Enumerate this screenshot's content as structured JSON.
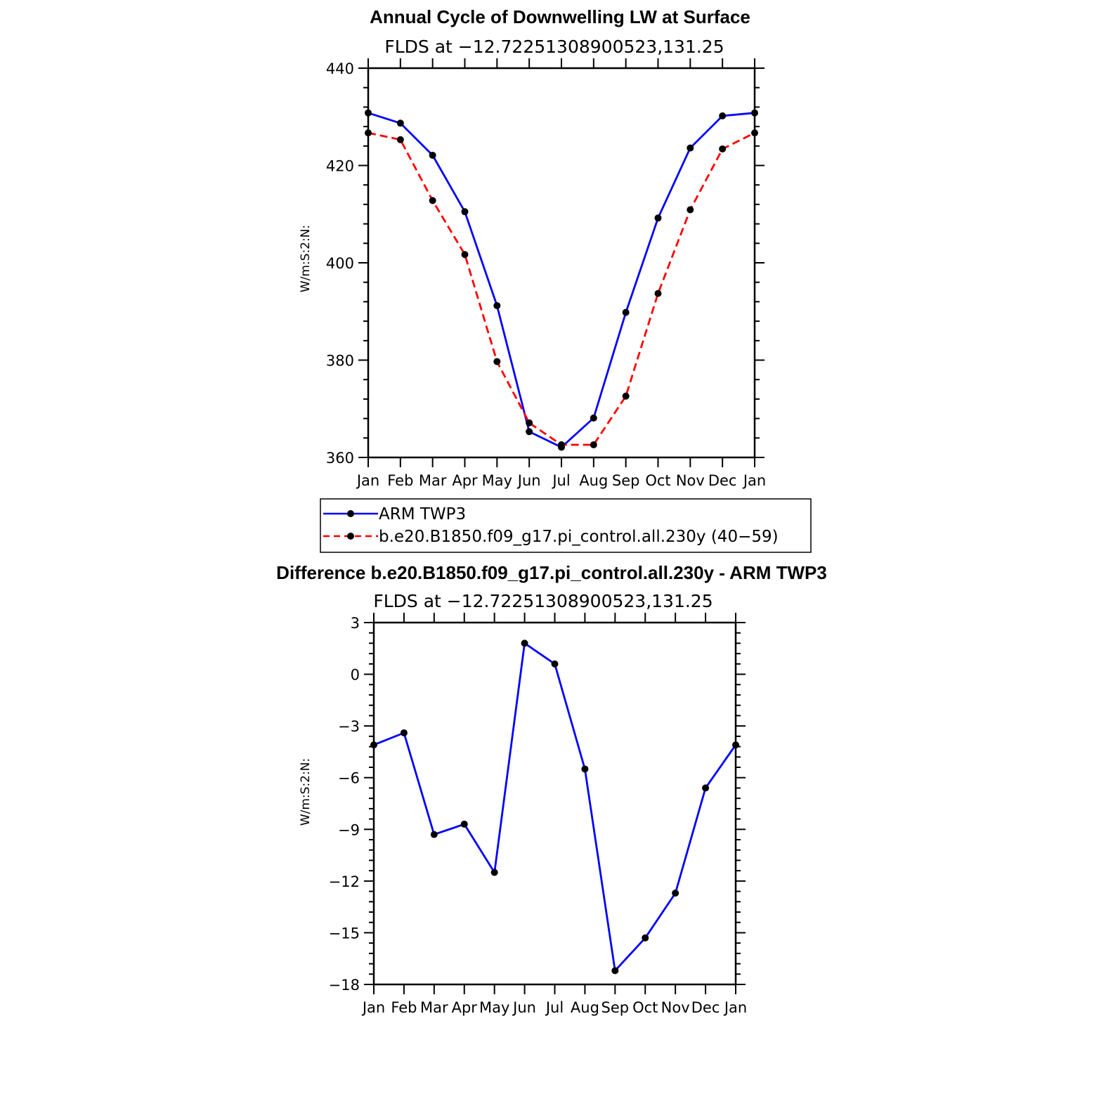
{
  "chart_data": [
    {
      "type": "line",
      "title": "Annual Cycle of Downwelling LW at Surface",
      "subtitle": "FLDS at −12.72251308900523,131.25",
      "ylabel": "W/m:S:2:N:",
      "xlabel": "",
      "categories": [
        "Jan",
        "Feb",
        "Mar",
        "Apr",
        "May",
        "Jun",
        "Jul",
        "Aug",
        "Sep",
        "Oct",
        "Nov",
        "Dec",
        "Jan"
      ],
      "ylim": [
        360,
        440
      ],
      "yticks": [
        360,
        380,
        400,
        420,
        440
      ],
      "ytick_labels": [
        "360",
        "380",
        "400",
        "420",
        "440"
      ],
      "legend": "below",
      "series": [
        {
          "name": "ARM TWP3",
          "color": "#0000ff",
          "dash": "solid",
          "values": [
            430.8,
            428.7,
            422.1,
            410.5,
            391.2,
            365.3,
            362.1,
            368.1,
            389.8,
            409.2,
            423.6,
            430.2,
            430.8
          ]
        },
        {
          "name": "b.e20.B1850.f09_g17.pi_control.all.230y (40−59)",
          "color": "#ff0000",
          "dash": "dashed",
          "values": [
            426.7,
            425.3,
            412.8,
            401.7,
            379.7,
            367.1,
            362.6,
            362.6,
            372.6,
            393.7,
            410.9,
            423.4,
            426.7
          ]
        }
      ]
    },
    {
      "type": "line",
      "title": "Difference b.e20.B1850.f09_g17.pi_control.all.230y - ARM TWP3",
      "subtitle": "FLDS at −12.72251308900523,131.25",
      "ylabel": "W/m:S:2:N:",
      "xlabel": "",
      "categories": [
        "Jan",
        "Feb",
        "Mar",
        "Apr",
        "May",
        "Jun",
        "Jul",
        "Aug",
        "Sep",
        "Oct",
        "Nov",
        "Dec",
        "Jan"
      ],
      "ylim": [
        -18,
        3
      ],
      "yticks": [
        -18,
        -15,
        -12,
        -9,
        -6,
        -3,
        0,
        3
      ],
      "ytick_labels": [
        "−18",
        "−15",
        "−12",
        "−9",
        "−6",
        "−3",
        "0",
        "3"
      ],
      "series": [
        {
          "color": "#0000ff",
          "dash": "solid",
          "values": [
            -4.1,
            -3.4,
            -9.3,
            -8.7,
            -11.5,
            1.8,
            0.6,
            -5.5,
            -17.2,
            -15.3,
            -12.7,
            -6.6,
            -4.1
          ]
        }
      ]
    }
  ]
}
